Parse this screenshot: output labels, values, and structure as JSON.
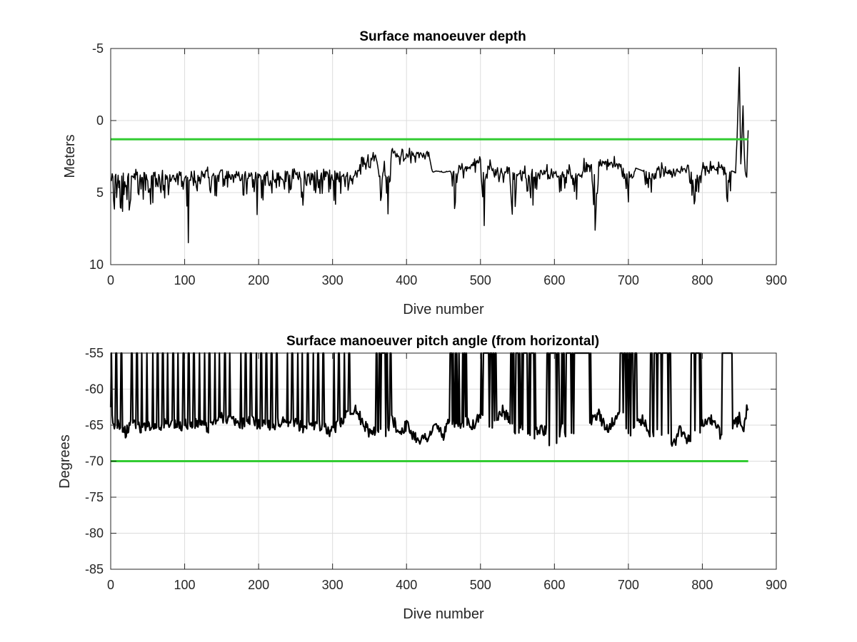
{
  "chart_data": [
    {
      "type": "line",
      "title": "Surface manoeuver depth",
      "xlabel": "Dive number",
      "ylabel": "Meters",
      "xlim": [
        0,
        900
      ],
      "ylim": [
        10,
        -5
      ],
      "y_reversed": true,
      "xticks": [
        0,
        100,
        200,
        300,
        400,
        500,
        600,
        700,
        800,
        900
      ],
      "yticks": [
        -5,
        0,
        5,
        10
      ],
      "grid": true,
      "series": [
        {
          "style": "thin-dense",
          "color": "#000000",
          "x": [
            0,
            5,
            10,
            15,
            20,
            25,
            30,
            35,
            40,
            45,
            50,
            55,
            60,
            65,
            70,
            75,
            80,
            85,
            90,
            95,
            100,
            105,
            110,
            120,
            130,
            140,
            150,
            160,
            170,
            180,
            190,
            200,
            210,
            220,
            230,
            240,
            250,
            260,
            270,
            280,
            290,
            300,
            310,
            320,
            330,
            340,
            350,
            360,
            365,
            370,
            375,
            380,
            385,
            390,
            400,
            410,
            420,
            430,
            435,
            440,
            450,
            460,
            465,
            470,
            480,
            490,
            500,
            505,
            510,
            520,
            530,
            540,
            545,
            550,
            560,
            570,
            580,
            590,
            600,
            610,
            620,
            630,
            640,
            650,
            655,
            660,
            670,
            680,
            690,
            700,
            710,
            720,
            730,
            740,
            750,
            760,
            770,
            780,
            790,
            800,
            810,
            820,
            830,
            835,
            840,
            845,
            850,
            852,
            855,
            858,
            860,
            862
          ],
          "y": [
            4,
            5.8,
            4.2,
            6.5,
            4.4,
            6.2,
            4.3,
            5.5,
            4.5,
            5.6,
            4.2,
            5.8,
            4.4,
            5.2,
            4.0,
            5.5,
            4.1,
            5.0,
            3.8,
            5.4,
            4.0,
            7.9,
            3.7,
            4.8,
            3.6,
            5.3,
            3.8,
            4.9,
            3.7,
            5.1,
            3.9,
            6.5,
            3.9,
            4.8,
            3.8,
            5.0,
            4.0,
            5.6,
            3.9,
            5.2,
            4.1,
            5.8,
            4.5,
            4.4,
            3.8,
            3.1,
            2.8,
            2.5,
            5.8,
            3.0,
            6.5,
            1.9,
            2.5,
            2.5,
            2.5,
            2.4,
            2.4,
            2.3,
            3.6,
            3.5,
            3.6,
            3.5,
            6.0,
            3.6,
            3.3,
            3.0,
            3.0,
            6.9,
            3.2,
            3.6,
            3.8,
            3.7,
            8.2,
            3.6,
            3.6,
            6.2,
            3.6,
            3.5,
            3.5,
            5.6,
            3.3,
            5.5,
            3.1,
            3.1,
            7.2,
            3.0,
            3.0,
            2.9,
            3.2,
            5.2,
            3.3,
            3.5,
            4.9,
            3.4,
            3.5,
            3.5,
            3.5,
            3.5,
            5.4,
            3.4,
            3.3,
            3.3,
            3.2,
            6.1,
            3.3,
            3.7,
            -3.6,
            3.5,
            -1.0,
            3.8,
            3.9,
            0.9
          ]
        },
        {
          "style": "threshold",
          "color": "#33cc33",
          "x": [
            0,
            862
          ],
          "y": [
            1.3,
            1.3
          ]
        }
      ]
    },
    {
      "type": "line",
      "title": "Surface manoeuver pitch angle (from horizontal)",
      "xlabel": "Dive number",
      "ylabel": "Degrees",
      "xlim": [
        0,
        900
      ],
      "ylim": [
        -85,
        -55
      ],
      "xticks": [
        0,
        100,
        200,
        300,
        400,
        500,
        600,
        700,
        800,
        900
      ],
      "yticks": [
        -85,
        -80,
        -75,
        -70,
        -65,
        -60,
        -55
      ],
      "grid": true,
      "series": [
        {
          "style": "thick-dense",
          "color": "#000000",
          "x": [
            0,
            5,
            10,
            20,
            30,
            40,
            50,
            60,
            70,
            80,
            90,
            100,
            110,
            120,
            130,
            140,
            150,
            160,
            170,
            180,
            190,
            200,
            210,
            220,
            230,
            240,
            250,
            260,
            270,
            280,
            290,
            300,
            310,
            320,
            330,
            340,
            350,
            360,
            370,
            380,
            390,
            400,
            410,
            420,
            430,
            440,
            450,
            460,
            470,
            480,
            490,
            500,
            510,
            520,
            530,
            540,
            550,
            560,
            570,
            580,
            590,
            600,
            610,
            620,
            630,
            640,
            650,
            660,
            670,
            680,
            690,
            700,
            710,
            720,
            730,
            740,
            750,
            760,
            770,
            780,
            790,
            800,
            810,
            820,
            830,
            840,
            850,
            855,
            860,
            862
          ],
          "y": [
            -63,
            -65.5,
            -64.5,
            -66,
            -64.5,
            -65.5,
            -64.8,
            -65.2,
            -65.0,
            -64.6,
            -65.3,
            -64.8,
            -65.1,
            -64.7,
            -65.5,
            -64.5,
            -63.8,
            -64.2,
            -64.5,
            -64.8,
            -64.3,
            -65.0,
            -64.6,
            -65.2,
            -64.5,
            -65.0,
            -64.7,
            -65.3,
            -65.0,
            -64.8,
            -65.5,
            -66.0,
            -64.5,
            -63.5,
            -62.5,
            -64.5,
            -66.0,
            -65.5,
            -66.5,
            -64.0,
            -66.0,
            -65.0,
            -66.5,
            -67.0,
            -66.5,
            -65.0,
            -66.5,
            -64.0,
            -65.5,
            -64.0,
            -65.0,
            -63.5,
            -65.0,
            -64.5,
            -63.0,
            -64.5,
            -66.0,
            -65.0,
            -66.5,
            -65.5,
            -66.0,
            -69.5,
            -65.0,
            -67.0,
            -65.5,
            -66.0,
            -64.5,
            -63.5,
            -65.5,
            -64.5,
            -63.0,
            -66.5,
            -65.0,
            -64.0,
            -66.5,
            -65.5,
            -66.0,
            -68.0,
            -65.5,
            -67.0,
            -66.5,
            -65.0,
            -64.0,
            -65.5,
            -67.5,
            -65.5,
            -64.0,
            -66.5,
            -63.0,
            -62.0
          ]
        },
        {
          "style": "threshold",
          "color": "#33cc33",
          "x": [
            0,
            862
          ],
          "y": [
            -70,
            -70
          ]
        }
      ]
    }
  ]
}
